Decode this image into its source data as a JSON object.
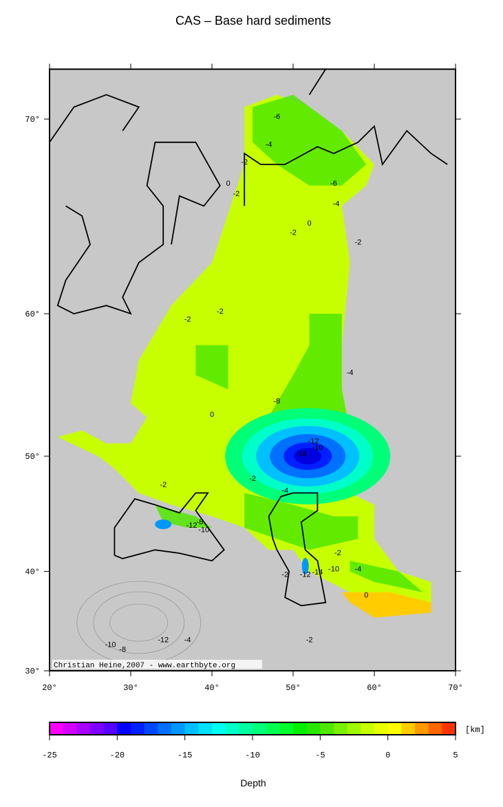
{
  "chart_data": {
    "type": "map",
    "title": "CAS – Base hard sediments",
    "xlim": [
      20,
      70
    ],
    "ylim": [
      30,
      72
    ],
    "xticks": [
      {
        "value": 20,
        "label": "20°"
      },
      {
        "value": 30,
        "label": "30°"
      },
      {
        "value": 40,
        "label": "40°"
      },
      {
        "value": 50,
        "label": "50°"
      },
      {
        "value": 60,
        "label": "60°"
      },
      {
        "value": 70,
        "label": "70°"
      }
    ],
    "yticks": [
      {
        "value": 30,
        "label": "30°"
      },
      {
        "value": 40,
        "label": "40°"
      },
      {
        "value": 50,
        "label": "50°"
      },
      {
        "value": 60,
        "label": "60°"
      },
      {
        "value": 70,
        "label": "70°"
      }
    ],
    "credit": "Christian Heine,2007 - www.earthbyte.org",
    "contour_labels": [
      -6,
      -4,
      -2,
      0,
      -2,
      -2,
      0,
      -2,
      -4,
      -6,
      -2,
      -2,
      -4,
      -8,
      -18,
      -12,
      -10,
      -4,
      -2,
      -12,
      -10,
      -8,
      -2,
      0,
      -14,
      -12,
      -10,
      -2,
      -4,
      0,
      -2,
      -10,
      -8,
      -12,
      -4,
      -2
    ],
    "colorbar": {
      "label": "Depth",
      "unit": "[km]",
      "lim": [
        -25,
        5
      ],
      "ticks": [
        -25,
        -20,
        -15,
        -10,
        -5,
        0,
        5
      ],
      "colors": [
        "#ff00ff",
        "#d400ff",
        "#aa00ff",
        "#8000ff",
        "#5500ff",
        "#0000ff",
        "#0020ff",
        "#0048ff",
        "#0070ff",
        "#0098ff",
        "#00c0ff",
        "#00e0ff",
        "#00fff0",
        "#00ffc8",
        "#00ffa0",
        "#00ff78",
        "#00ff50",
        "#00ff28",
        "#00f000",
        "#28e800",
        "#50e800",
        "#78f000",
        "#a0f800",
        "#c8ff00",
        "#e8ff00",
        "#ffff00",
        "#ffcc00",
        "#ff9900",
        "#ff6600",
        "#ff3300"
      ]
    }
  }
}
